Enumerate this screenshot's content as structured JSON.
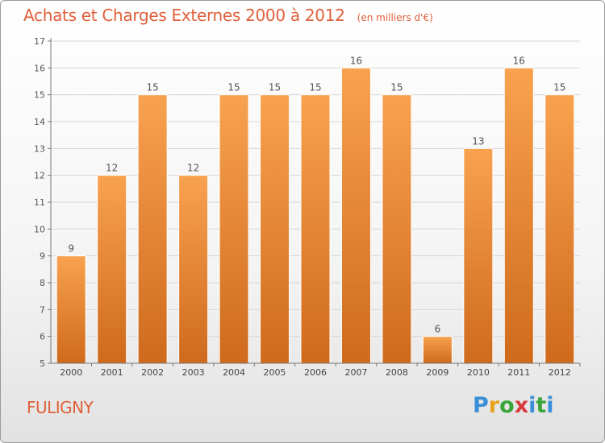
{
  "title": "Achats et Charges Externes 2000 à 2012",
  "unit": "(en milliers d'€)",
  "place": "FULIGNY",
  "logo": [
    "P",
    "r",
    "o",
    "x",
    "i",
    "t",
    "i"
  ],
  "colors": {
    "bar_light": "#f8a24f",
    "bar_dark": "#cf6a1c",
    "title": "#e0603a"
  },
  "chart_data": {
    "type": "bar",
    "categories": [
      "2000",
      "2001",
      "2002",
      "2003",
      "2004",
      "2005",
      "2006",
      "2007",
      "2008",
      "2009",
      "2010",
      "2011",
      "2012"
    ],
    "values": [
      9,
      12,
      15,
      12,
      15,
      15,
      15,
      16,
      15,
      6,
      13,
      16,
      15
    ],
    "data_labels": [
      "9",
      "12",
      "15",
      "12",
      "15",
      "15",
      "15",
      "16",
      "15",
      "6",
      "13",
      "16",
      "15"
    ],
    "ylim": [
      5,
      17
    ],
    "yticks": [
      5,
      6,
      7,
      8,
      9,
      10,
      11,
      12,
      13,
      14,
      15,
      16,
      17
    ],
    "grid": true
  }
}
